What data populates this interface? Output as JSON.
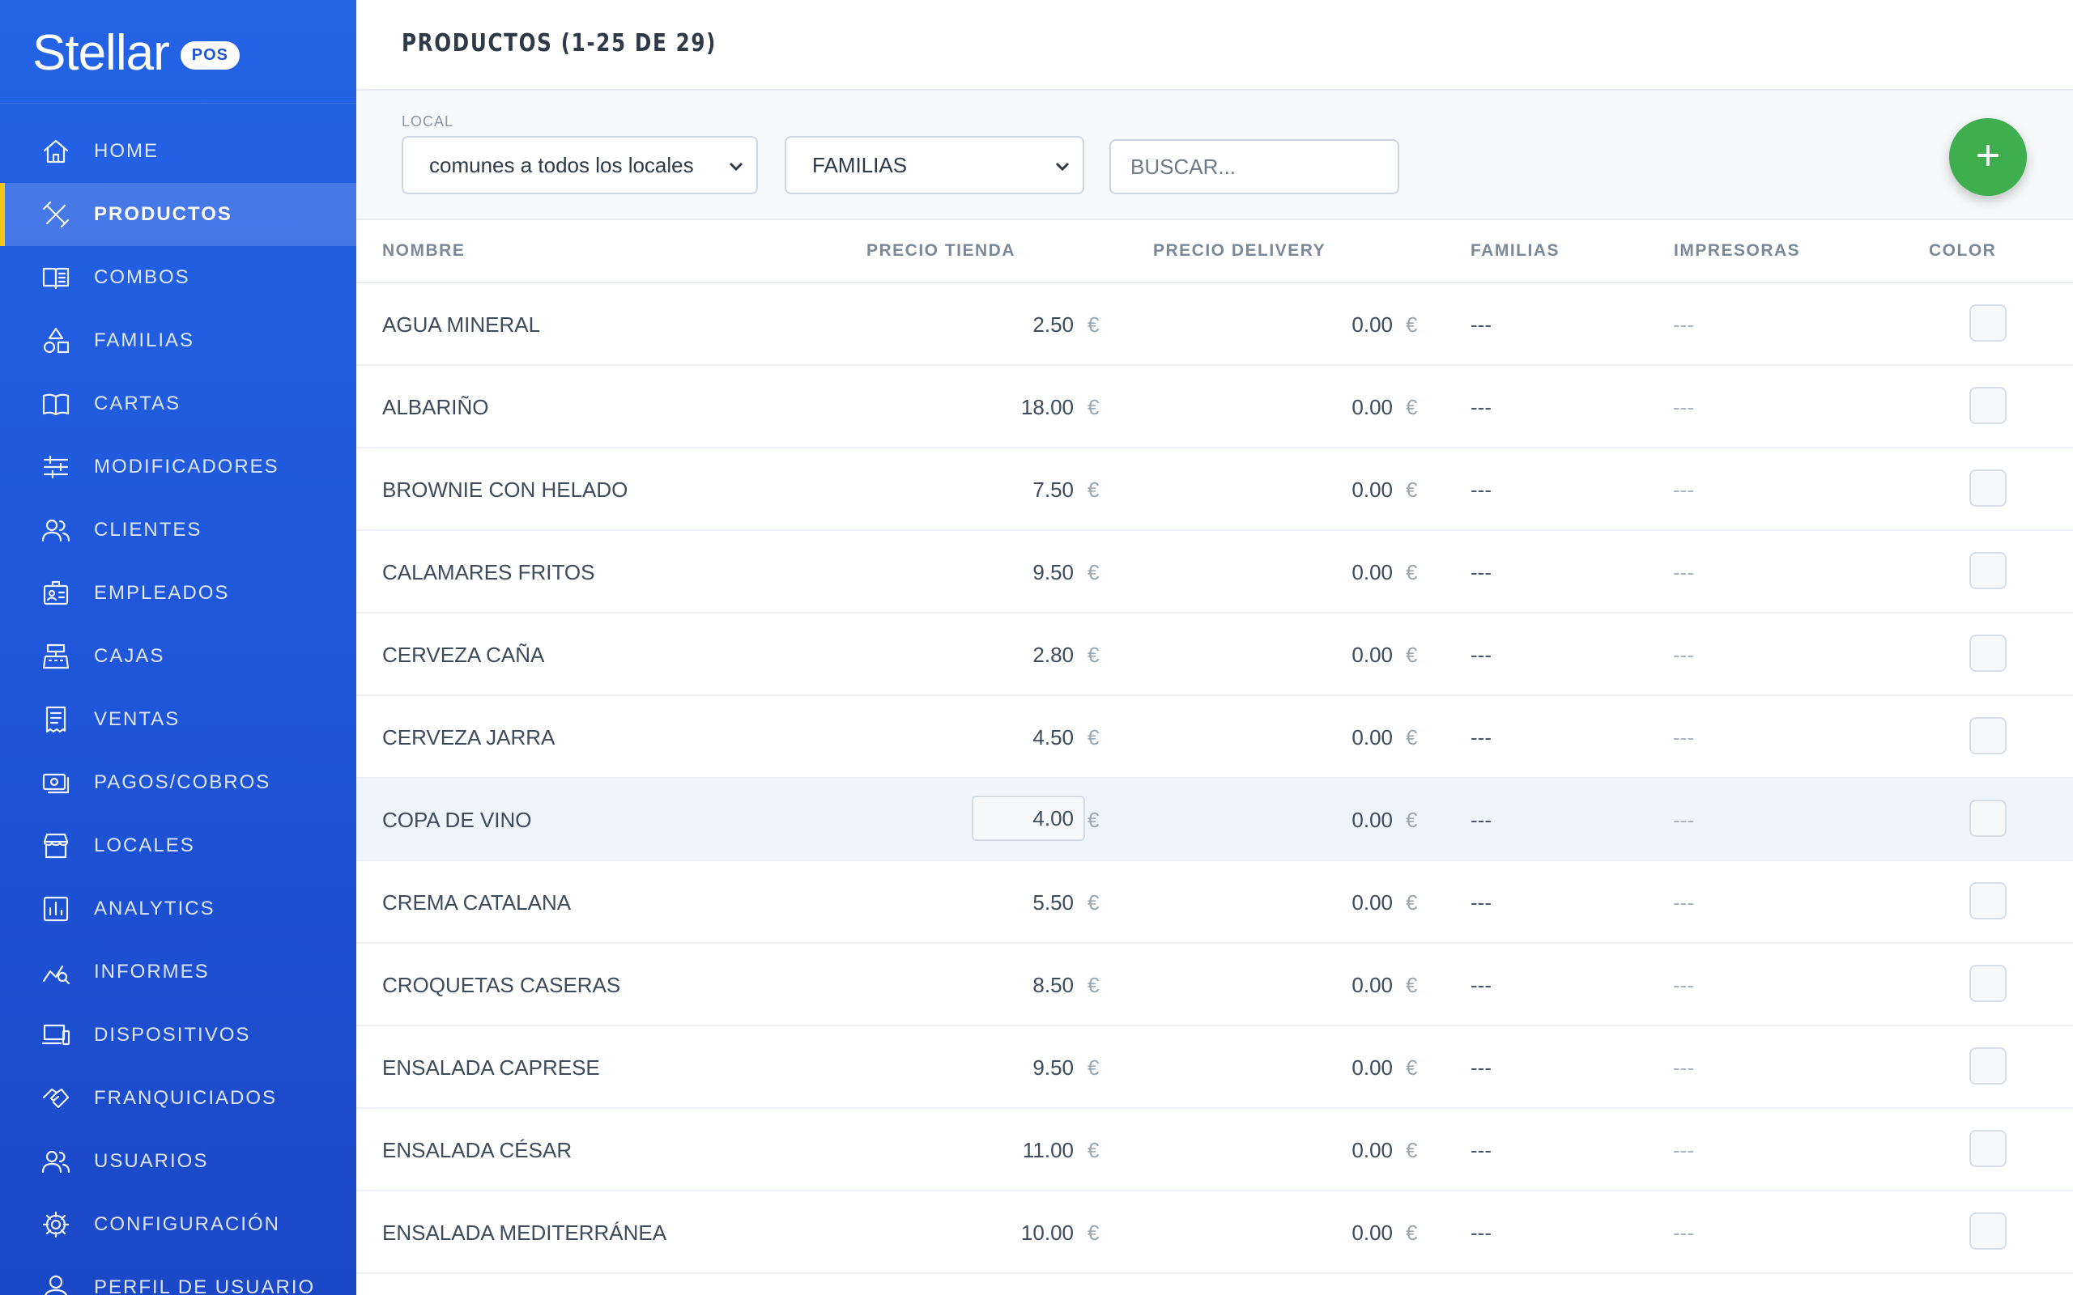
{
  "app": {
    "name": "Stellar",
    "badge": "POS"
  },
  "sidebar": {
    "items": [
      {
        "label": "HOME",
        "icon": "home-icon"
      },
      {
        "label": "PRODUCTOS",
        "icon": "utensils-icon",
        "active": true
      },
      {
        "label": "COMBOS",
        "icon": "menu-book-icon"
      },
      {
        "label": "FAMILIAS",
        "icon": "shapes-icon"
      },
      {
        "label": "CARTAS",
        "icon": "open-book-icon"
      },
      {
        "label": "MODIFICADORES",
        "icon": "sliders-icon"
      },
      {
        "label": "CLIENTES",
        "icon": "people-icon"
      },
      {
        "label": "EMPLEADOS",
        "icon": "badge-icon"
      },
      {
        "label": "CAJAS",
        "icon": "register-icon"
      },
      {
        "label": "VENTAS",
        "icon": "receipt-icon"
      },
      {
        "label": "PAGOS/COBROS",
        "icon": "cash-icon"
      },
      {
        "label": "LOCALES",
        "icon": "store-icon"
      },
      {
        "label": "ANALYTICS",
        "icon": "bar-chart-icon"
      },
      {
        "label": "INFORMES",
        "icon": "report-search-icon"
      },
      {
        "label": "DISPOSITIVOS",
        "icon": "devices-icon"
      },
      {
        "label": "FRANQUICIADOS",
        "icon": "handshake-icon"
      },
      {
        "label": "USUARIOS",
        "icon": "people-icon"
      },
      {
        "label": "CONFIGURACIÓN",
        "icon": "gear-icon"
      },
      {
        "label": "PERFIL DE USUARIO",
        "icon": "person-icon"
      }
    ]
  },
  "header": {
    "title": "PRODUCTOS (1-25 DE 29)"
  },
  "filters": {
    "local_label": "LOCAL",
    "local_value": "comunes a todos los locales",
    "familias_value": "FAMILIAS",
    "search_placeholder": "BUSCAR..."
  },
  "add_button": {
    "icon": "plus-icon",
    "color": "#3fae4f"
  },
  "table": {
    "columns": [
      "NOMBRE",
      "PRECIO TIENDA",
      "PRECIO DELIVERY",
      "FAMILIAS",
      "IMPRESORAS",
      "COLOR"
    ],
    "currency": "€",
    "rows": [
      {
        "nombre": "AGUA MINERAL",
        "precio_tienda": "2.50",
        "precio_delivery": "0.00",
        "familias": "---",
        "impresoras": "---"
      },
      {
        "nombre": "ALBARIÑO",
        "precio_tienda": "18.00",
        "precio_delivery": "0.00",
        "familias": "---",
        "impresoras": "---"
      },
      {
        "nombre": "BROWNIE CON HELADO",
        "precio_tienda": "7.50",
        "precio_delivery": "0.00",
        "familias": "---",
        "impresoras": "---"
      },
      {
        "nombre": "CALAMARES FRITOS",
        "precio_tienda": "9.50",
        "precio_delivery": "0.00",
        "familias": "---",
        "impresoras": "---"
      },
      {
        "nombre": "CERVEZA CAÑA",
        "precio_tienda": "2.80",
        "precio_delivery": "0.00",
        "familias": "---",
        "impresoras": "---"
      },
      {
        "nombre": "CERVEZA JARRA",
        "precio_tienda": "4.50",
        "precio_delivery": "0.00",
        "familias": "---",
        "impresoras": "---"
      },
      {
        "nombre": "COPA DE VINO",
        "precio_tienda": "4.00",
        "precio_delivery": "0.00",
        "familias": "---",
        "impresoras": "---",
        "editing": true
      },
      {
        "nombre": "CREMA CATALANA",
        "precio_tienda": "5.50",
        "precio_delivery": "0.00",
        "familias": "---",
        "impresoras": "---"
      },
      {
        "nombre": "CROQUETAS CASERAS",
        "precio_tienda": "8.50",
        "precio_delivery": "0.00",
        "familias": "---",
        "impresoras": "---"
      },
      {
        "nombre": "ENSALADA CAPRESE",
        "precio_tienda": "9.50",
        "precio_delivery": "0.00",
        "familias": "---",
        "impresoras": "---"
      },
      {
        "nombre": "ENSALADA CÉSAR",
        "precio_tienda": "11.00",
        "precio_delivery": "0.00",
        "familias": "---",
        "impresoras": "---"
      },
      {
        "nombre": "ENSALADA MEDITERRÁNEA",
        "precio_tienda": "10.00",
        "precio_delivery": "0.00",
        "familias": "---",
        "impresoras": "---"
      }
    ]
  },
  "colors": {
    "sidebar": "#2463e6",
    "active_indicator": "#f5c518",
    "accent_green": "#3fae4f"
  }
}
